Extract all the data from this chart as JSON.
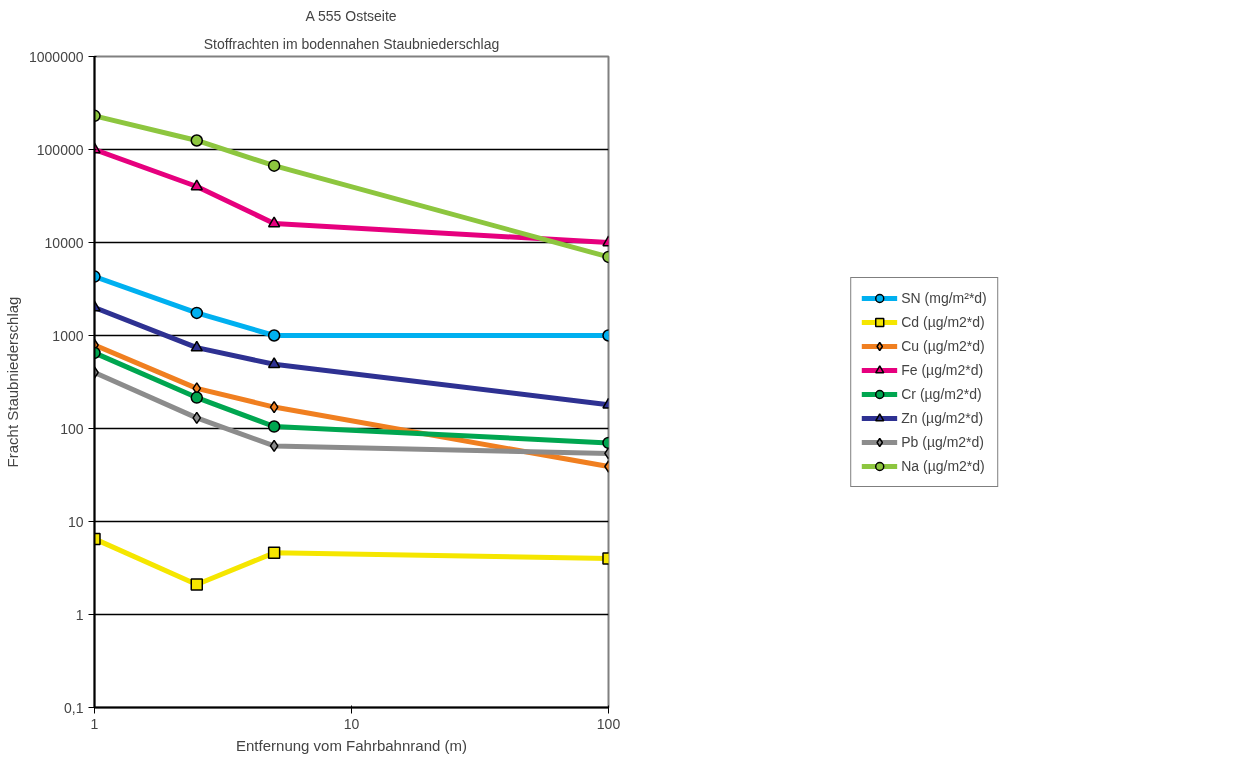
{
  "chart_data": {
    "type": "line",
    "title": "A 555 Ostseite",
    "subtitle": "Stoffrachten im bodennahen Staubniederschlag",
    "xlabel": "Entfernung vom Fahrbahnrand (m)",
    "ylabel": "Fracht Staubniederschlag",
    "x": [
      1,
      2.5,
      5,
      100
    ],
    "log": "xy",
    "xlim": [
      1,
      100
    ],
    "xticks": [
      1,
      10,
      100
    ],
    "ylim": [
      0.1,
      1000000
    ],
    "yticks": [
      {
        "value": 0.1,
        "label": "0,1"
      },
      1,
      10,
      100,
      1000,
      10000,
      100000,
      1000000
    ],
    "grid": "y",
    "legend": "right",
    "series": [
      {
        "name": "SN (mg/m²*d)",
        "color": "#00b0f0",
        "marker": "circle",
        "values": [
          4300,
          1750,
          1000,
          1000
        ]
      },
      {
        "name": "Cd (µg/m2*d)",
        "color": "#f5e600",
        "marker": "square",
        "values": [
          6.5,
          2.1,
          4.6,
          4.0
        ]
      },
      {
        "name": "Cu (µg/m2*d)",
        "color": "#f07f20",
        "marker": "diamond",
        "values": [
          790,
          270,
          170,
          39
        ]
      },
      {
        "name": "Fe (µg/m2*d)",
        "color": "#e6007e",
        "marker": "triangle",
        "values": [
          100000,
          40000,
          16000,
          10000
        ]
      },
      {
        "name": "Cr (µg/m2*d)",
        "color": "#00a650",
        "marker": "circle",
        "values": [
          650,
          215,
          105,
          70
        ]
      },
      {
        "name": "Zn (µg/m2*d)",
        "color": "#2e3192",
        "marker": "triangle",
        "values": [
          2000,
          740,
          490,
          180
        ]
      },
      {
        "name": "Pb (µg/m2*d)",
        "color": "#8c8c8c",
        "marker": "diamond",
        "values": [
          400,
          130,
          65,
          54
        ]
      },
      {
        "name": "Na (µg/m2*d)",
        "color": "#8dc63f",
        "marker": "circle",
        "values": [
          230000,
          125000,
          67000,
          7000
        ]
      }
    ]
  }
}
